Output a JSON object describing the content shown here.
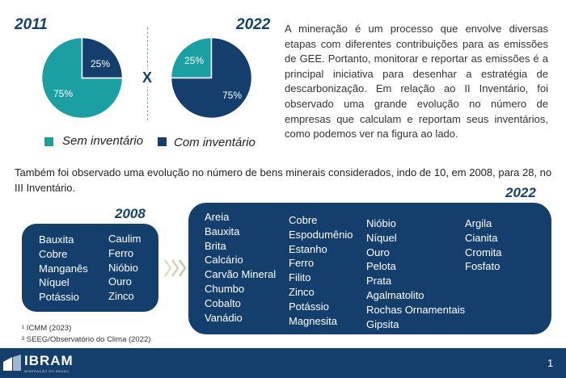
{
  "pies": [
    {
      "year": "2011",
      "slices": [
        {
          "label": "75%",
          "value": 75,
          "color": "#1a9fa3"
        },
        {
          "label": "25%",
          "value": 25,
          "color": "#143f6d"
        }
      ]
    },
    {
      "year": "2022",
      "slices": [
        {
          "label": "25%",
          "value": 25,
          "color": "#1a9fa3"
        },
        {
          "label": "75%",
          "value": 75,
          "color": "#143f6d"
        }
      ]
    }
  ],
  "versus": "X",
  "legend": {
    "sem": "Sem inventário",
    "com": "Com inventário",
    "sem_color": "#1a9fa3",
    "com_color": "#143f6d"
  },
  "paragraph": "A mineração é um processo que envolve diversas etapas com diferentes contribuições para as emissões de GEE. Portanto, monitorar e reportar as emissões é a principal iniciativa para desenhar a estratégia de descarbonização. Em relação ao II Inventário, foi observado uma grande evolução no número de empresas que calculam e reportam seus inventários, como podemos ver na figura ao lado.",
  "evolution_text": "Também foi observado uma evolução no número de bens minerais considerados, indo de 10, em 2008, para 28, no III Inventário.",
  "box2008": {
    "title": "2008",
    "col1": [
      "Bauxita",
      "Cobre",
      "Manganês",
      "Níquel",
      "Potássio"
    ],
    "col2": [
      "Caulim",
      "Ferro",
      "Nióbio",
      "Ouro",
      "Zinco"
    ]
  },
  "box2022": {
    "title": "2022",
    "col1": [
      "Areia",
      "Bauxita",
      "Brita",
      "Calcário",
      "Carvão Mineral",
      "Chumbo",
      "Cobalto",
      "Vanádio"
    ],
    "col2": [
      "Cobre",
      "Espodumênio",
      "Estanho",
      "Ferro",
      "Filito",
      "Zinco",
      "Potássio",
      "Magnesita"
    ],
    "col3": [
      "Nióbio",
      "Níquel",
      "Ouro",
      "Pelota",
      "Prata",
      "Agalmatolito",
      "Rochas Ornamentais",
      "Gipsita"
    ],
    "col4": [
      "Argila",
      "Cianita",
      "Cromita",
      "Fosfato"
    ]
  },
  "footnotes": [
    "¹ ICMM (2023)",
    "² SEEG/Observatório do Clima (2022)"
  ],
  "footer": {
    "logo_text": "IBRAM",
    "logo_sub": "MINERAÇÃO DO BRASIL",
    "page_number": "1"
  }
}
